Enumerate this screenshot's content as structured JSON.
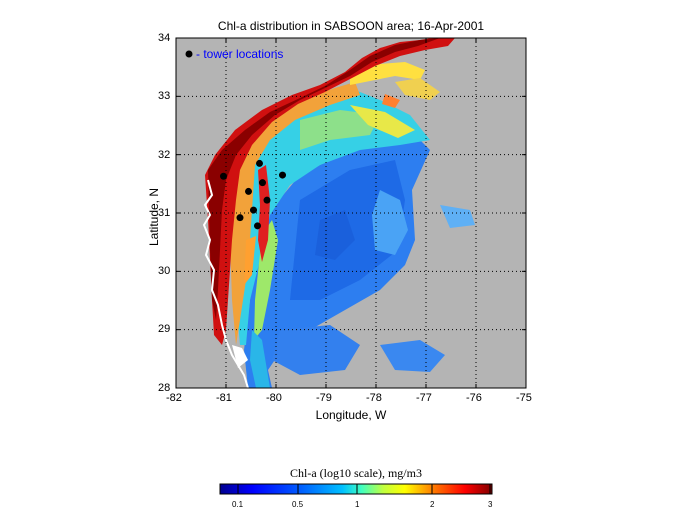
{
  "title": "Chl-a distribution in SABSOON area; 16-Apr-2001",
  "xlabel": "Longitude, W",
  "ylabel": "Latitude, N",
  "legend_text": "- tower locations",
  "x_ticks": [
    "-82",
    "-81",
    "-80",
    "-79",
    "-78",
    "-77",
    "-76",
    "-75"
  ],
  "y_ticks": [
    "34",
    "33",
    "32",
    "31",
    "30",
    "29",
    "28"
  ],
  "colorbar": {
    "title": "Chl-a (log10 scale), mg/m3",
    "ticks": [
      "0.1",
      "0.5",
      "1",
      "2",
      "3"
    ],
    "colors": [
      "#00008f",
      "#0000ff",
      "#0080ff",
      "#00ffff",
      "#80ff80",
      "#ffff00",
      "#ff8000",
      "#ff0000",
      "#800000"
    ]
  },
  "map_colors": {
    "land": "#b4b4b4",
    "coast": "#ffffff"
  },
  "towers": [
    {
      "lon": -81.05,
      "lat": 31.63
    },
    {
      "lon": -80.33,
      "lat": 31.85
    },
    {
      "lon": -79.87,
      "lat": 31.65
    },
    {
      "lon": -80.27,
      "lat": 31.52
    },
    {
      "lon": -80.55,
      "lat": 31.37
    },
    {
      "lon": -80.18,
      "lat": 31.22
    },
    {
      "lon": -80.45,
      "lat": 31.05
    },
    {
      "lon": -80.72,
      "lat": 30.92
    },
    {
      "lon": -80.37,
      "lat": 30.78
    }
  ]
}
